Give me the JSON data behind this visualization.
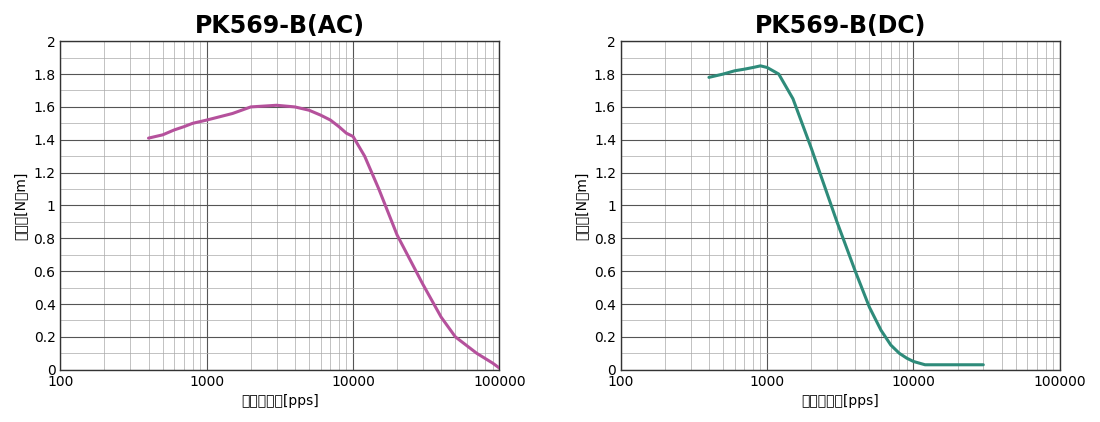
{
  "title_ac": "PK569-B(AC)",
  "title_dc": "PK569-B(DC)",
  "ylabel": "トルク[N・m]",
  "xlabel": "パルス速度[pps]",
  "xlim": [
    100,
    100000
  ],
  "ylim": [
    0,
    2.0
  ],
  "yticks_major": [
    0,
    0.2,
    0.4,
    0.6,
    0.8,
    1.0,
    1.2,
    1.4,
    1.6,
    1.8,
    2.0
  ],
  "color_ac": "#b5519c",
  "color_dc": "#2e8b7a",
  "line_width": 2.2,
  "title_fontsize": 17,
  "label_fontsize": 10,
  "tick_fontsize": 10,
  "ac_x": [
    400,
    500,
    600,
    700,
    800,
    1000,
    1500,
    2000,
    3000,
    4000,
    5000,
    6000,
    7000,
    8000,
    9000,
    10000,
    12000,
    15000,
    20000,
    30000,
    40000,
    50000,
    70000,
    90000,
    100000
  ],
  "ac_y": [
    1.41,
    1.43,
    1.46,
    1.48,
    1.5,
    1.52,
    1.56,
    1.6,
    1.61,
    1.6,
    1.58,
    1.55,
    1.52,
    1.48,
    1.44,
    1.42,
    1.3,
    1.1,
    0.82,
    0.52,
    0.32,
    0.2,
    0.1,
    0.04,
    0.01
  ],
  "dc_x": [
    400,
    500,
    600,
    700,
    800,
    900,
    1000,
    1200,
    1500,
    2000,
    3000,
    4000,
    5000,
    6000,
    7000,
    8000,
    9000,
    10000,
    12000,
    15000,
    20000,
    25000,
    30000
  ],
  "dc_y": [
    1.78,
    1.8,
    1.82,
    1.83,
    1.84,
    1.85,
    1.84,
    1.8,
    1.65,
    1.35,
    0.9,
    0.6,
    0.38,
    0.24,
    0.15,
    0.1,
    0.07,
    0.05,
    0.03,
    0.03,
    0.03,
    0.03,
    0.03
  ],
  "grid_major_color": "#555555",
  "grid_minor_color": "#aaaaaa",
  "grid_major_lw": 0.8,
  "grid_minor_lw": 0.5,
  "bg_color": "#ffffff",
  "title_fontweight": "bold",
  "spine_color": "#333333",
  "spine_lw": 1.0
}
